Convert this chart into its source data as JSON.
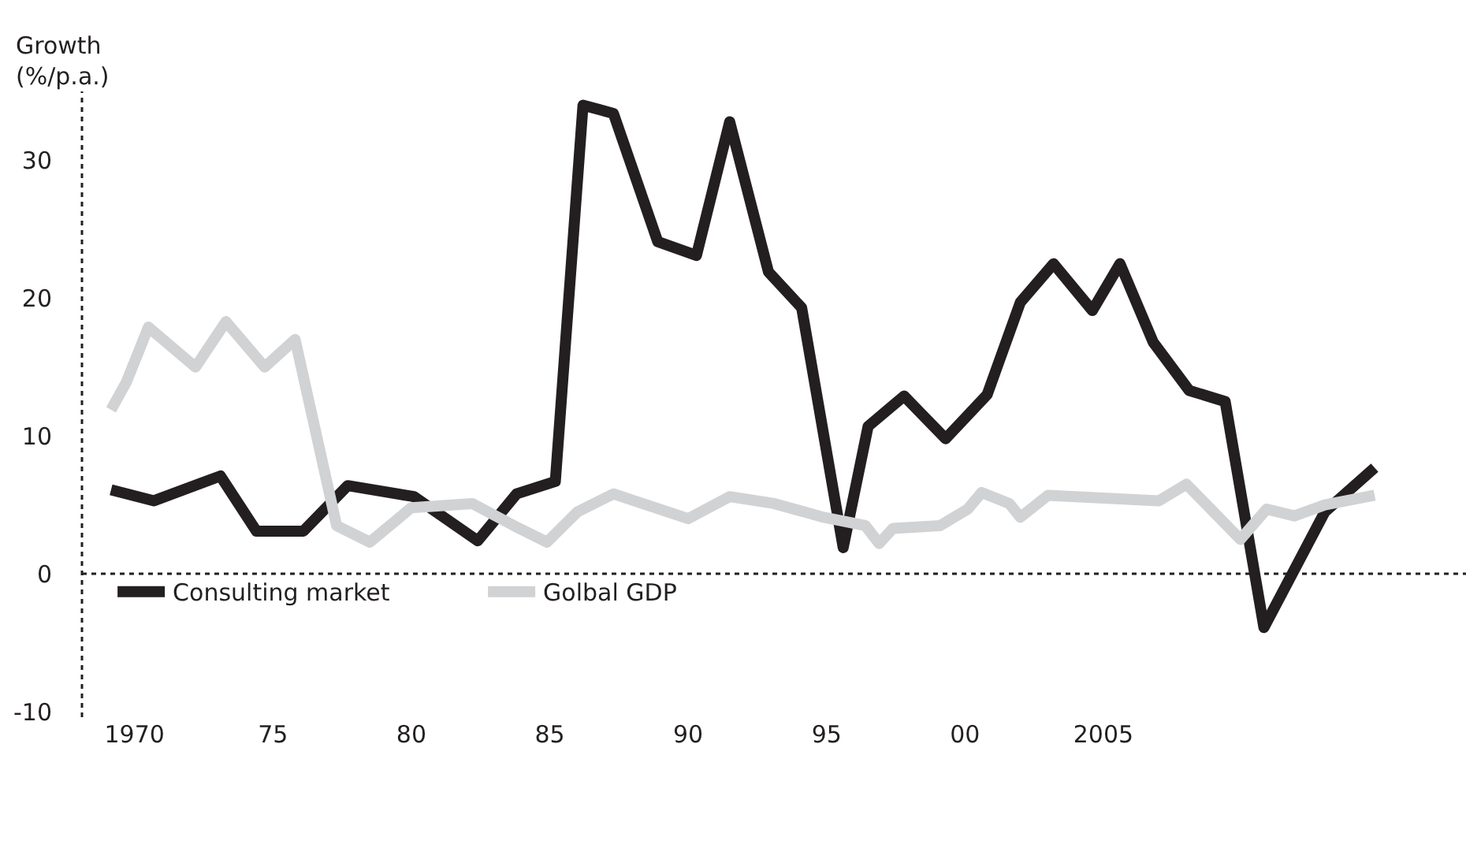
{
  "chart_data": {
    "type": "line",
    "ylabel": "Growth\n(%/p.a.)",
    "xlim": [
      1968.1,
      2018.1
    ],
    "xticks": [
      1970,
      {
        "value": 1975,
        "label": "75"
      },
      {
        "value": 1980,
        "label": "80"
      },
      {
        "value": 1985,
        "label": "85"
      },
      {
        "value": 1990,
        "label": "90"
      },
      {
        "value": 1995,
        "label": "95"
      },
      {
        "value": 2000,
        "label": "00"
      },
      2005
    ],
    "ylim": [
      -10.4,
      35
    ],
    "yticks": [
      -10,
      0,
      10,
      20,
      30
    ],
    "grid": false,
    "legend": "bottom left",
    "marker": "none",
    "line_style": "solid",
    "ref_lines": [
      {
        "axis": "y",
        "value": 0,
        "line_style": "dotted",
        "color": "#231f20"
      }
    ],
    "series": [
      {
        "name": "Consulting market",
        "color": "#231f20",
        "x": [
          1969.15,
          1970.7,
          1973.1,
          1974.4,
          1976.1,
          1977.7,
          1980.1,
          1982.4,
          1983.8,
          1985.2,
          1986.2,
          1987.3,
          1988.9,
          1990.3,
          1991.5,
          1992.9,
          1994.1,
          1995.6,
          1996.5,
          1997.8,
          1999.3,
          2000.8,
          2002.0,
          2003.2,
          2004.6,
          2005.6,
          2006.8,
          2008.1,
          2009.4,
          2010.8,
          2013.0,
          2014.8
        ],
        "values": [
          6.1,
          5.3,
          7.1,
          3.1,
          3.1,
          6.4,
          5.6,
          2.4,
          5.8,
          6.7,
          34.0,
          33.4,
          24.1,
          23.1,
          32.8,
          21.9,
          19.3,
          1.9,
          10.7,
          12.9,
          9.8,
          13.0,
          19.7,
          22.5,
          19.1,
          22.5,
          16.8,
          13.3,
          12.5,
          -3.9,
          4.5,
          7.7
        ]
      },
      {
        "name": "Golbal GDP",
        "color": "#d1d2d4",
        "x": [
          1969.15,
          1969.7,
          1970.5,
          1972.2,
          1973.3,
          1974.7,
          1975.8,
          1977.3,
          1978.5,
          1980.0,
          1982.2,
          1983.7,
          1984.9,
          1986.0,
          1987.3,
          1990.0,
          1991.5,
          1993.1,
          1994.9,
          1996.4,
          1996.9,
          1997.4,
          1999.1,
          2000.1,
          2000.6,
          2001.6,
          2002.0,
          2003.0,
          2007.0,
          2008.0,
          2009.95,
          2010.9,
          2011.9,
          2013.0,
          2014.8
        ],
        "values": [
          11.9,
          13.9,
          17.9,
          15.0,
          18.3,
          15.0,
          17.0,
          3.5,
          2.3,
          4.8,
          5.1,
          3.5,
          2.3,
          4.5,
          5.8,
          4.0,
          5.6,
          5.1,
          4.1,
          3.5,
          2.2,
          3.3,
          3.5,
          4.7,
          5.9,
          5.1,
          4.1,
          5.7,
          5.3,
          6.5,
          2.5,
          4.7,
          4.2,
          5.0,
          5.7
        ]
      }
    ]
  }
}
